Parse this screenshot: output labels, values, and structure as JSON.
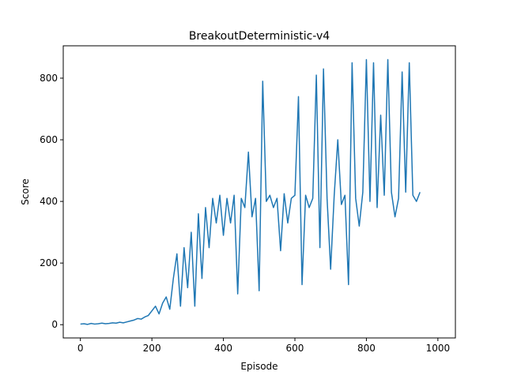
{
  "chart_data": {
    "type": "line",
    "title": "BreakoutDeterministic-v4",
    "xlabel": "Episode",
    "ylabel": "Score",
    "x": [
      0,
      10,
      20,
      30,
      40,
      50,
      60,
      70,
      80,
      90,
      100,
      110,
      120,
      130,
      140,
      150,
      160,
      170,
      180,
      190,
      200,
      210,
      220,
      230,
      240,
      250,
      260,
      270,
      280,
      290,
      300,
      310,
      320,
      330,
      340,
      350,
      360,
      370,
      380,
      390,
      400,
      410,
      420,
      430,
      440,
      450,
      460,
      470,
      480,
      490,
      500,
      510,
      520,
      530,
      540,
      550,
      560,
      570,
      580,
      590,
      600,
      610,
      620,
      630,
      640,
      650,
      660,
      670,
      680,
      690,
      700,
      710,
      720,
      730,
      740,
      750,
      760,
      770,
      780,
      790,
      800,
      810,
      820,
      830,
      840,
      850,
      860,
      870,
      880,
      890,
      900,
      910,
      920,
      930,
      940,
      950
    ],
    "series": [
      {
        "name": "Score",
        "color": "#1f77b4",
        "values": [
          2,
          3,
          1,
          4,
          2,
          3,
          5,
          3,
          4,
          6,
          5,
          8,
          6,
          9,
          12,
          15,
          20,
          18,
          25,
          30,
          45,
          60,
          35,
          70,
          90,
          50,
          150,
          230,
          60,
          250,
          120,
          300,
          60,
          360,
          150,
          380,
          250,
          410,
          330,
          420,
          290,
          410,
          330,
          420,
          100,
          410,
          380,
          560,
          350,
          410,
          110,
          790,
          400,
          420,
          380,
          410,
          240,
          425,
          330,
          410,
          420,
          740,
          130,
          420,
          380,
          410,
          810,
          250,
          830,
          410,
          180,
          420,
          600,
          390,
          420,
          130,
          850,
          410,
          320,
          430,
          860,
          400,
          850,
          380,
          680,
          420,
          860,
          430,
          350,
          410,
          820,
          430,
          850,
          420,
          400,
          430
        ]
      }
    ],
    "xlim": [
      -48,
      1049
    ],
    "ylim": [
      -43,
      905
    ],
    "xticks": [
      0,
      200,
      400,
      600,
      800,
      1000
    ],
    "yticks": [
      0,
      200,
      400,
      600,
      800
    ],
    "grid": false
  }
}
